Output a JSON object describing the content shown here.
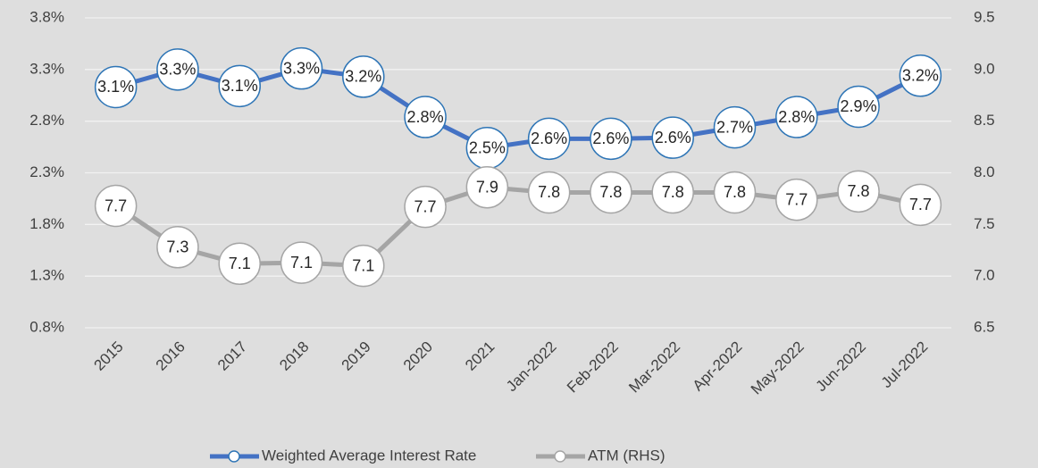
{
  "chart_data": {
    "type": "line",
    "categories": [
      "2015",
      "2016",
      "2017",
      "2018",
      "2019",
      "2020",
      "2021",
      "Jan-2022",
      "Feb-2022",
      "Mar-2022",
      "Apr-2022",
      "May-2022",
      "Jun-2022",
      "Jul-2022"
    ],
    "series": [
      {
        "name": "Weighted Average Interest Rate",
        "color": "#4472c4",
        "marker_color": "#2e75b6",
        "values": [
          3.13,
          3.3,
          3.14,
          3.31,
          3.23,
          2.84,
          2.54,
          2.63,
          2.63,
          2.64,
          2.74,
          2.84,
          2.94,
          3.24
        ],
        "value_labels": [
          "3.1%",
          "3.3%",
          "3.1%",
          "3.3%",
          "3.2%",
          "2.8%",
          "2.5%",
          "2.6%",
          "2.6%",
          "2.6%",
          "2.7%",
          "2.8%",
          "2.9%",
          "3.2%"
        ]
      },
      {
        "name": "ATM (RHS)",
        "color": "#a5a5a5",
        "marker_color": "#a5a5a5",
        "axis": "y2",
        "values": [
          7.68,
          7.28,
          7.12,
          7.13,
          7.1,
          7.67,
          7.86,
          7.81,
          7.81,
          7.81,
          7.81,
          7.74,
          7.82,
          7.69
        ],
        "value_labels": [
          "7.7",
          "7.3",
          "7.1",
          "7.1",
          "7.1",
          "7.7",
          "7.9",
          "7.8",
          "7.8",
          "7.8",
          "7.8",
          "7.7",
          "7.8",
          "7.7"
        ]
      }
    ],
    "ylim": [
      0.8,
      3.8
    ],
    "yticks": [
      {
        "value": 0.8,
        "label": "0.8%"
      },
      {
        "value": 1.3,
        "label": "1.3%"
      },
      {
        "value": 1.8,
        "label": "1.8%"
      },
      {
        "value": 2.3,
        "label": "2.3%"
      },
      {
        "value": 2.8,
        "label": "2.8%"
      },
      {
        "value": 3.3,
        "label": "3.3%"
      },
      {
        "value": 3.8,
        "label": "3.8%"
      }
    ],
    "y2lim": [
      6.5,
      9.5
    ],
    "y2ticks": [
      6.5,
      {
        "value": 7,
        "label": "7.0"
      },
      7.5,
      {
        "value": 8,
        "label": "8.0"
      },
      8.5,
      {
        "value": 9,
        "label": "9.0"
      },
      9.5
    ],
    "grid": true,
    "legend": "bottom"
  }
}
